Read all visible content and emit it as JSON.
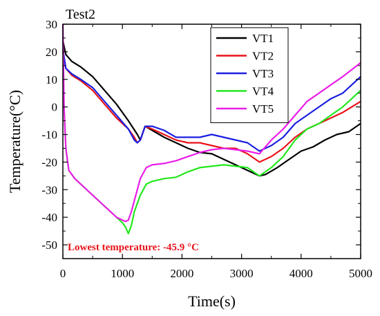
{
  "chart_data": {
    "type": "line",
    "panel_label": "Test2",
    "xlabel": "Time(s)",
    "ylabel": "Temperature(°C)",
    "xlim": [
      0,
      5000
    ],
    "ylim": [
      -55,
      30
    ],
    "xticks": [
      0,
      1000,
      2000,
      3000,
      4000,
      5000
    ],
    "yticks": [
      -50,
      -40,
      -30,
      -20,
      -10,
      0,
      10,
      20,
      30
    ],
    "grid": false,
    "legend_position": "top-right",
    "annotation": {
      "text": "Lowest temperature: -45.9 °C",
      "color": "#e8131a"
    },
    "series": [
      {
        "name": "VT1",
        "color": "#000000",
        "x": [
          0,
          50,
          150,
          300,
          500,
          700,
          900,
          1100,
          1250,
          1300,
          1380,
          1500,
          1700,
          1900,
          2100,
          2300,
          2500,
          2700,
          2900,
          3100,
          3300,
          3400,
          3600,
          3800,
          4000,
          4200,
          4400,
          4600,
          4800,
          5000
        ],
        "y": [
          24,
          19,
          16.5,
          14.5,
          11,
          6,
          1,
          -5,
          -10,
          -12,
          -7,
          -8.5,
          -11,
          -13,
          -15,
          -16.5,
          -17,
          -19,
          -21,
          -23,
          -25,
          -24.5,
          -22,
          -19,
          -16,
          -14.5,
          -12,
          -10,
          -9,
          -6
        ]
      },
      {
        "name": "VT2",
        "color": "#e8131a",
        "x": [
          0,
          50,
          150,
          300,
          500,
          700,
          900,
          1100,
          1200,
          1250,
          1300,
          1380,
          1500,
          1700,
          1900,
          2100,
          2300,
          2500,
          2700,
          2900,
          3100,
          3300,
          3500,
          3700,
          3900,
          4100,
          4300,
          4500,
          4700,
          5000
        ],
        "y": [
          20,
          14,
          11.5,
          9.5,
          6,
          1,
          -4,
          -8,
          -11,
          -13,
          -12,
          -7,
          -8,
          -10,
          -12,
          -13,
          -13,
          -14,
          -15,
          -15,
          -17,
          -20,
          -18,
          -15,
          -11,
          -8,
          -6,
          -4,
          -2,
          2
        ]
      },
      {
        "name": "VT3",
        "color": "#1a1fe0",
        "x": [
          0,
          50,
          150,
          300,
          500,
          700,
          900,
          1100,
          1200,
          1250,
          1300,
          1380,
          1500,
          1700,
          1900,
          2100,
          2300,
          2500,
          2700,
          2900,
          3100,
          3300,
          3500,
          3700,
          3900,
          4100,
          4300,
          4500,
          4700,
          5000
        ],
        "y": [
          21,
          14,
          12,
          10,
          7,
          2,
          -3,
          -8,
          -12,
          -13,
          -12,
          -7,
          -7,
          -8.5,
          -11,
          -11,
          -11,
          -10,
          -11,
          -12,
          -13,
          -16,
          -14,
          -11,
          -6,
          -3,
          0,
          3,
          5,
          11
        ]
      },
      {
        "name": "VT4",
        "color": "#21e81c",
        "x": [
          0,
          20,
          50,
          100,
          200,
          300,
          400,
          500,
          600,
          700,
          800,
          900,
          1000,
          1050,
          1100,
          1150,
          1200,
          1300,
          1400,
          1500,
          1700,
          1900,
          2100,
          2300,
          2500,
          2700,
          2900,
          3100,
          3300,
          3500,
          3700,
          3900,
          4100,
          4300,
          4500,
          4700,
          5000
        ],
        "y": [
          28,
          0,
          -15,
          -23,
          -26,
          -28,
          -30,
          -32,
          -34,
          -36,
          -38,
          -40,
          -42,
          -43.5,
          -45.9,
          -43,
          -38,
          -32,
          -28,
          -27,
          -26,
          -25.5,
          -23.5,
          -22,
          -21.5,
          -21,
          -21.5,
          -22,
          -25,
          -22,
          -18,
          -12,
          -8,
          -6,
          -3,
          0,
          6
        ]
      },
      {
        "name": "VT5",
        "color": "#e91ee8",
        "x": [
          0,
          20,
          50,
          100,
          200,
          300,
          400,
          500,
          600,
          700,
          800,
          900,
          1000,
          1050,
          1100,
          1150,
          1200,
          1300,
          1400,
          1500,
          1700,
          1900,
          2100,
          2300,
          2500,
          2700,
          2900,
          3100,
          3300,
          3500,
          3700,
          3900,
          4100,
          4300,
          4500,
          4700,
          5000
        ],
        "y": [
          30,
          0,
          -15,
          -23,
          -26,
          -28,
          -30,
          -32,
          -34,
          -36,
          -38,
          -40,
          -41,
          -41.5,
          -41,
          -38,
          -34,
          -26,
          -22,
          -21,
          -20.5,
          -19.5,
          -18,
          -16.5,
          -15.5,
          -15,
          -15.5,
          -16,
          -17,
          -12,
          -8,
          -3,
          2,
          5,
          8,
          11,
          16
        ]
      }
    ]
  }
}
